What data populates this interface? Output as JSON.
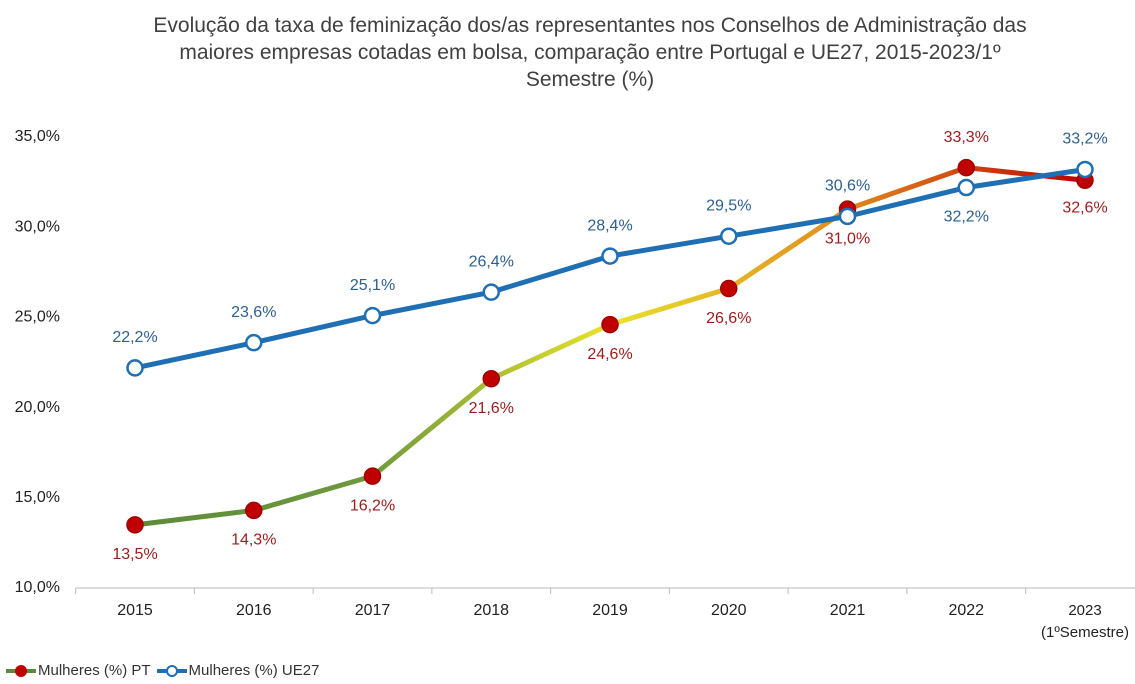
{
  "chart_data": {
    "type": "line",
    "title": "Evolução da taxa de feminização dos/as representantes nos Conselhos de Administração das maiores empresas cotadas em bolsa, comparação entre Portugal e UE27, 2015-2023/1º Semestre (%)",
    "categories": [
      "2015",
      "2016",
      "2017",
      "2018",
      "2019",
      "2020",
      "2021",
      "2022",
      "2023\n(1ºSemestre)"
    ],
    "series": [
      {
        "name": "Mulheres (%) PT",
        "color": "#c00000",
        "label_color": "#9b1c1c",
        "line_gradient": [
          "#5b8a3a",
          "#6f9a3c",
          "#e8e22c",
          "#e08a1e",
          "#c00000"
        ],
        "values": [
          13.5,
          14.3,
          16.2,
          21.6,
          24.6,
          26.6,
          31.0,
          33.3,
          32.6
        ],
        "value_labels": [
          "13,5%",
          "14,3%",
          "16,2%",
          "21,6%",
          "24,6%",
          "26,6%",
          "31,0%",
          "33,3%",
          "32,6%"
        ]
      },
      {
        "name": "Mulheres (%) UE27",
        "color": "#1f6fb5",
        "label_color": "#2e5f8f",
        "values": [
          22.2,
          23.6,
          25.1,
          26.4,
          28.4,
          29.5,
          30.6,
          32.2,
          33.2
        ],
        "value_labels": [
          "22,2%",
          "23,6%",
          "25,1%",
          "26,4%",
          "28,4%",
          "29,5%",
          "30,6%",
          "32,2%",
          "33,2%"
        ]
      }
    ],
    "ylim": [
      10,
      35
    ],
    "yticks": [
      {
        "value": 10,
        "label": "10,0%"
      },
      {
        "value": 15,
        "label": "15,0%"
      },
      {
        "value": 20,
        "label": "20,0%"
      },
      {
        "value": 25,
        "label": "25,0%"
      },
      {
        "value": 30,
        "label": "30,0%"
      },
      {
        "value": 35,
        "label": "35,0%"
      }
    ],
    "grid": false,
    "legend": "bottom-left"
  }
}
